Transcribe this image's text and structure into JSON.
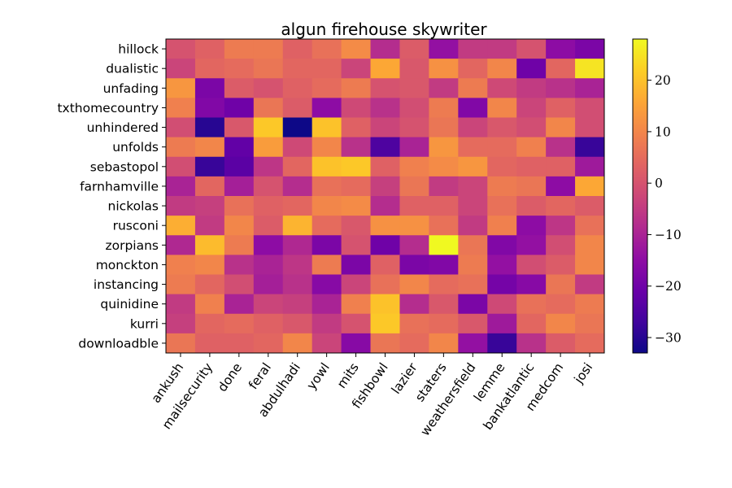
{
  "chart_data": {
    "type": "heatmap",
    "title": "algun firehouse skywriter",
    "colormap": "plasma",
    "x_categories": [
      "ankush",
      "mailsecurity",
      "done",
      "feral",
      "abdulhadi",
      "yowl",
      "mits",
      "fishbowl",
      "lazier",
      "staters",
      "weathersfield",
      "lemme",
      "bankatlantic",
      "medcom",
      "josi"
    ],
    "y_categories": [
      "hillock",
      "dualistic",
      "unfading",
      "txthomecountry",
      "unhindered",
      "unfolds",
      "sebastopol",
      "farnhamville",
      "nickolas",
      "rusconi",
      "zorpians",
      "monckton",
      "instancing",
      "quinidine",
      "kurri",
      "downloadble"
    ],
    "values": [
      [
        0,
        3,
        8,
        8,
        3,
        6,
        11,
        -8,
        2,
        -14,
        -5,
        -5,
        0,
        -15,
        -18
      ],
      [
        -3,
        4,
        5,
        7,
        4,
        4,
        -3,
        16,
        1,
        12,
        4,
        10,
        -20,
        4,
        25
      ],
      [
        13,
        -18,
        2,
        0,
        3,
        5,
        8,
        0,
        1,
        -5,
        8,
        -2,
        -5,
        -7,
        -10
      ],
      [
        9,
        -17,
        -20,
        7,
        2,
        -15,
        -2,
        -7,
        -1,
        8,
        -17,
        10,
        -3,
        3,
        -1
      ],
      [
        -1,
        -30,
        1,
        21,
        -33,
        20,
        3,
        -3,
        0,
        7,
        -3,
        1,
        -1,
        10,
        -1
      ],
      [
        8,
        10,
        -22,
        14,
        -2,
        10,
        -7,
        -25,
        -10,
        13,
        5,
        5,
        9,
        -7,
        -28
      ],
      [
        -1,
        -28,
        -23,
        -6,
        4,
        20,
        21,
        3,
        9,
        11,
        13,
        4,
        3,
        3,
        -12
      ],
      [
        -10,
        4,
        -11,
        0,
        -8,
        6,
        5,
        -4,
        7,
        -5,
        -3,
        8,
        7,
        -15,
        16
      ],
      [
        -5,
        -4,
        6,
        3,
        4,
        10,
        11,
        -8,
        3,
        3,
        -3,
        6,
        2,
        4,
        2
      ],
      [
        17,
        -5,
        10,
        2,
        18,
        5,
        1,
        12,
        12,
        6,
        -5,
        9,
        -15,
        -6,
        6
      ],
      [
        -9,
        19,
        8,
        -15,
        -9,
        -18,
        0,
        -20,
        -8,
        28,
        7,
        -17,
        -14,
        -1,
        10
      ],
      [
        9,
        10,
        -7,
        -10,
        -6,
        8,
        -18,
        3,
        -18,
        -17,
        8,
        -14,
        -1,
        2,
        10
      ],
      [
        8,
        4,
        -1,
        -11,
        -7,
        -16,
        -3,
        6,
        10,
        5,
        6,
        -19,
        -16,
        7,
        -5
      ],
      [
        -5,
        9,
        -10,
        -3,
        -4,
        -10,
        9,
        20,
        -8,
        1,
        -18,
        -2,
        6,
        5,
        8
      ],
      [
        -4,
        4,
        5,
        3,
        1,
        -5,
        0,
        21,
        6,
        5,
        1,
        -12,
        4,
        10,
        7
      ],
      [
        7,
        3,
        3,
        4,
        10,
        -3,
        -16,
        7,
        5,
        10,
        -14,
        -28,
        -7,
        2,
        5
      ]
    ],
    "colorbar": {
      "min": -33,
      "max": 28,
      "ticks": [
        -30,
        -20,
        -10,
        0,
        10,
        20
      ]
    }
  }
}
